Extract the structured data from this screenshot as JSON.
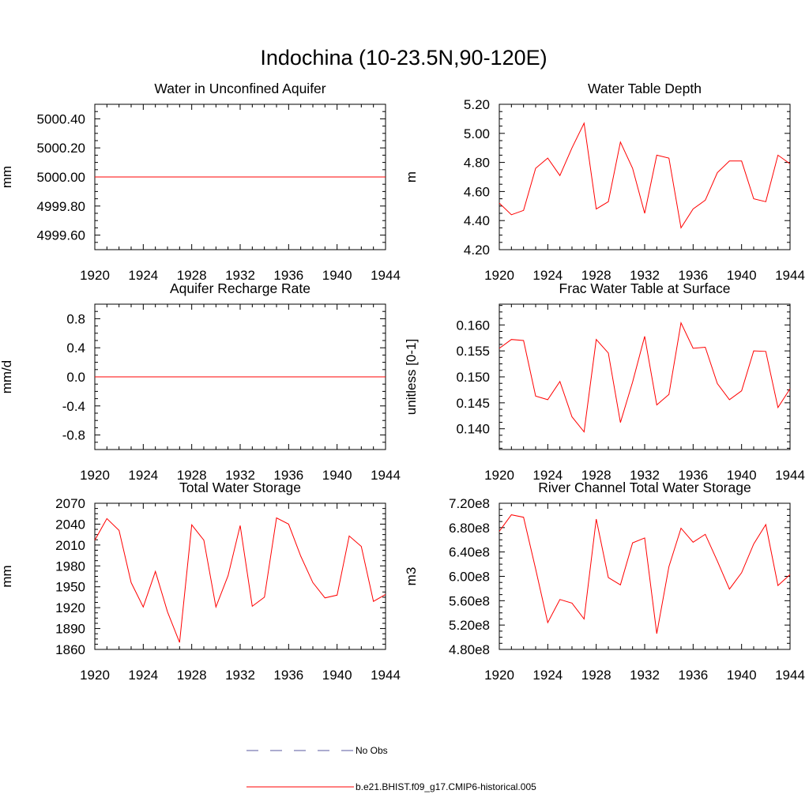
{
  "title": "Indochina (10-23.5N,90-120E)",
  "colors": {
    "model": "#ff0000",
    "obs": "#5a5aa0",
    "axis": "#000000"
  },
  "legend": {
    "items": [
      {
        "label": "No Obs",
        "style": "dashed",
        "color": "#5a5aa0"
      },
      {
        "label": "b.e21.BHIST.f09_g17.CMIP6-historical.005",
        "style": "solid",
        "color": "#ff0000"
      }
    ]
  },
  "chart_data": [
    {
      "type": "line",
      "title": "Water in Unconfined Aquifer",
      "ylabel": "mm",
      "xlim": [
        1920,
        1944
      ],
      "ylim": [
        4999.5,
        5000.5
      ],
      "xticks": [
        1920,
        1924,
        1928,
        1932,
        1936,
        1940,
        1944
      ],
      "yticks": [
        4999.6,
        4999.8,
        5000.0,
        5000.2,
        5000.4
      ],
      "ytick_labels": [
        "4999.60",
        "4999.80",
        "5000.00",
        "5000.20",
        "5000.40"
      ],
      "x": [
        1920,
        1921,
        1922,
        1923,
        1924,
        1925,
        1926,
        1927,
        1928,
        1929,
        1930,
        1931,
        1932,
        1933,
        1934,
        1935,
        1936,
        1937,
        1938,
        1939,
        1940,
        1941,
        1942,
        1943,
        1944
      ],
      "values": [
        5000,
        5000,
        5000,
        5000,
        5000,
        5000,
        5000,
        5000,
        5000,
        5000,
        5000,
        5000,
        5000,
        5000,
        5000,
        5000,
        5000,
        5000,
        5000,
        5000,
        5000,
        5000,
        5000,
        5000,
        5000
      ]
    },
    {
      "type": "line",
      "title": "Water Table Depth",
      "ylabel": "m",
      "xlim": [
        1920,
        1944
      ],
      "ylim": [
        4.2,
        5.2
      ],
      "xticks": [
        1920,
        1924,
        1928,
        1932,
        1936,
        1940,
        1944
      ],
      "yticks": [
        4.2,
        4.4,
        4.6,
        4.8,
        5.0,
        5.2
      ],
      "ytick_labels": [
        "4.20",
        "4.40",
        "4.60",
        "4.80",
        "5.00",
        "5.20"
      ],
      "x": [
        1920,
        1921,
        1922,
        1923,
        1924,
        1925,
        1926,
        1927,
        1928,
        1929,
        1930,
        1931,
        1932,
        1933,
        1934,
        1935,
        1936,
        1937,
        1938,
        1939,
        1940,
        1941,
        1942,
        1943,
        1944
      ],
      "values": [
        4.52,
        4.44,
        4.47,
        4.76,
        4.83,
        4.71,
        4.9,
        5.07,
        4.48,
        4.53,
        4.94,
        4.76,
        4.45,
        4.85,
        4.83,
        4.35,
        4.48,
        4.54,
        4.73,
        4.81,
        4.81,
        4.55,
        4.53,
        4.85,
        4.79
      ]
    },
    {
      "type": "line",
      "title": "Aquifer Recharge Rate",
      "ylabel": "mm/d",
      "xlim": [
        1920,
        1944
      ],
      "ylim": [
        -1.0,
        1.0
      ],
      "xticks": [
        1920,
        1924,
        1928,
        1932,
        1936,
        1940,
        1944
      ],
      "yticks": [
        -0.8,
        -0.4,
        0.0,
        0.4,
        0.8
      ],
      "ytick_labels": [
        "-0.8",
        "-0.4",
        "0.0",
        "0.4",
        "0.8"
      ],
      "x": [
        1920,
        1921,
        1922,
        1923,
        1924,
        1925,
        1926,
        1927,
        1928,
        1929,
        1930,
        1931,
        1932,
        1933,
        1934,
        1935,
        1936,
        1937,
        1938,
        1939,
        1940,
        1941,
        1942,
        1943,
        1944
      ],
      "values": [
        0,
        0,
        0,
        0,
        0,
        0,
        0,
        0,
        0,
        0,
        0,
        0,
        0,
        0,
        0,
        0,
        0,
        0,
        0,
        0,
        0,
        0,
        0,
        0,
        0
      ]
    },
    {
      "type": "line",
      "title": "Frac Water Table at Surface",
      "ylabel": "unitless [0-1]",
      "xlim": [
        1920,
        1944
      ],
      "ylim": [
        0.136,
        0.164
      ],
      "xticks": [
        1920,
        1924,
        1928,
        1932,
        1936,
        1940,
        1944
      ],
      "yticks": [
        0.14,
        0.145,
        0.15,
        0.155,
        0.16
      ],
      "ytick_labels": [
        "0.140",
        "0.145",
        "0.150",
        "0.155",
        "0.160"
      ],
      "x": [
        1920,
        1921,
        1922,
        1923,
        1924,
        1925,
        1926,
        1927,
        1928,
        1929,
        1930,
        1931,
        1932,
        1933,
        1934,
        1935,
        1936,
        1937,
        1938,
        1939,
        1940,
        1941,
        1942,
        1943,
        1944
      ],
      "values": [
        0.1555,
        0.1572,
        0.157,
        0.1463,
        0.1456,
        0.1491,
        0.1423,
        0.1394,
        0.1572,
        0.1546,
        0.1412,
        0.149,
        0.1578,
        0.1446,
        0.1466,
        0.1604,
        0.1555,
        0.1557,
        0.1487,
        0.1456,
        0.1473,
        0.155,
        0.1549,
        0.1441,
        0.1477
      ]
    },
    {
      "type": "line",
      "title": "Total Water Storage",
      "ylabel": "mm",
      "xlim": [
        1920,
        1944
      ],
      "ylim": [
        1860,
        2070
      ],
      "xticks": [
        1920,
        1924,
        1928,
        1932,
        1936,
        1940,
        1944
      ],
      "yticks": [
        1860,
        1890,
        1920,
        1950,
        1980,
        2010,
        2040,
        2070
      ],
      "ytick_labels": [
        "1860",
        "1890",
        "1920",
        "1950",
        "1980",
        "2010",
        "2040",
        "2070"
      ],
      "x": [
        1920,
        1921,
        1922,
        1923,
        1924,
        1925,
        1926,
        1927,
        1928,
        1929,
        1930,
        1931,
        1932,
        1933,
        1934,
        1935,
        1936,
        1937,
        1938,
        1939,
        1940,
        1941,
        1942,
        1943,
        1944
      ],
      "values": [
        2017,
        2048,
        2031,
        1956,
        1921,
        1972,
        1914,
        1870,
        2039,
        2017,
        1921,
        1966,
        2038,
        1922,
        1935,
        2049,
        2040,
        1994,
        1956,
        1934,
        1938,
        2023,
        2008,
        1929,
        1939
      ]
    },
    {
      "type": "line",
      "title": "River Channel Total Water Storage",
      "ylabel": "m3",
      "xlim": [
        1920,
        1944
      ],
      "ylim": [
        480000000.0,
        720000000.0
      ],
      "xticks": [
        1920,
        1924,
        1928,
        1932,
        1936,
        1940,
        1944
      ],
      "yticks": [
        480000000.0,
        520000000.0,
        560000000.0,
        600000000.0,
        640000000.0,
        680000000.0,
        720000000.0
      ],
      "ytick_labels": [
        "4.80e8",
        "5.20e8",
        "5.60e8",
        "6.00e8",
        "6.40e8",
        "6.80e8",
        "7.20e8"
      ],
      "x": [
        1920,
        1921,
        1922,
        1923,
        1924,
        1925,
        1926,
        1927,
        1928,
        1929,
        1930,
        1931,
        1932,
        1933,
        1934,
        1935,
        1936,
        1937,
        1938,
        1939,
        1940,
        1941,
        1942,
        1943,
        1944
      ],
      "values": [
        674000000.0,
        701000000.0,
        697000000.0,
        612000000.0,
        524000000.0,
        562000000.0,
        556000000.0,
        530000000.0,
        694000000.0,
        598000000.0,
        586000000.0,
        655000000.0,
        663000000.0,
        506000000.0,
        616000000.0,
        679000000.0,
        656000000.0,
        669000000.0,
        625000000.0,
        579000000.0,
        606000000.0,
        653000000.0,
        685000000.0,
        585000000.0,
        603000000.0
      ]
    }
  ]
}
